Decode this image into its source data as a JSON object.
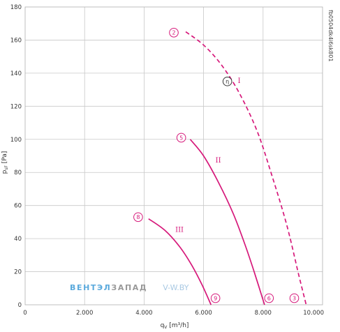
{
  "chart_data": {
    "type": "line",
    "ylabel": "p",
    "ylabel_sub": "sF",
    "ylabel_unit": "[Pa]",
    "xlabel": "q",
    "xlabel_sub": "V",
    "xlabel_unit": "[m³/h]",
    "xlim": [
      0,
      10000
    ],
    "ylim": [
      0,
      180
    ],
    "x_tick_labels": [
      "0",
      "2.000",
      "4.000",
      "6.000",
      "8.000",
      "10.000"
    ],
    "y_tick_labels": [
      "0",
      "20",
      "40",
      "60",
      "80",
      "100",
      "120",
      "140",
      "160",
      "180"
    ],
    "grid": true,
    "code": "fb0504dk4i6sk801",
    "efficiency_marker": "η",
    "series": [
      {
        "name": "I",
        "dashed": true,
        "x": [
          5400,
          6000,
          6600,
          7200,
          7800,
          8300,
          8800,
          9200,
          9450
        ],
        "y": [
          165,
          157,
          145,
          128,
          105,
          78,
          48,
          18,
          0
        ],
        "start_marker": "2",
        "end_marker": "3",
        "label_at": [
          7150,
          134
        ],
        "start_marker_at": [
          5000,
          164.5
        ],
        "end_marker_at": [
          9050,
          4
        ],
        "eta_marker_at": [
          6800,
          135
        ]
      },
      {
        "name": "II",
        "dashed": false,
        "x": [
          5550,
          6000,
          6500,
          7000,
          7400,
          7700,
          8050
        ],
        "y": [
          100,
          90,
          74,
          55,
          36,
          20,
          0
        ],
        "start_marker": "5",
        "end_marker": "6",
        "label_at": [
          6400,
          86
        ],
        "start_marker_at": [
          5250,
          101
        ],
        "end_marker_at": [
          8200,
          4
        ]
      },
      {
        "name": "III",
        "dashed": false,
        "x": [
          4150,
          4700,
          5200,
          5600,
          5950,
          6250
        ],
        "y": [
          52,
          45,
          35,
          24,
          12,
          0
        ],
        "start_marker": "8",
        "end_marker": "9",
        "label_at": [
          5050,
          44
        ],
        "start_marker_at": [
          3800,
          53
        ],
        "end_marker_at": [
          6400,
          4
        ]
      }
    ],
    "color": "#d6187a"
  },
  "watermark": {
    "part1": "ВЕНТЭЛ",
    "part2": "ЗАПАД",
    "part3": "V-W.BY",
    "color1": "#5aa9dc",
    "color2": "#999999",
    "color3": "#a9c9e3"
  }
}
